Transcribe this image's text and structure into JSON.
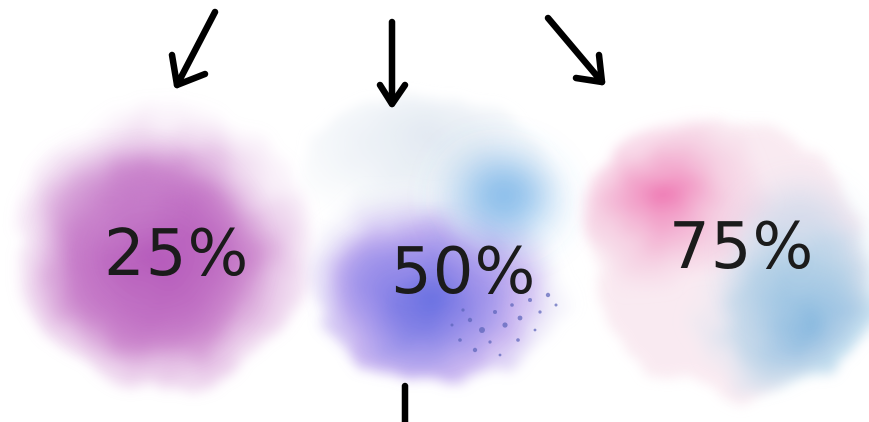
{
  "blots": [
    {
      "label": "25%",
      "colors": [
        "#b255b8",
        "#c97fc9",
        "#dfb3e0"
      ]
    },
    {
      "label": "50%",
      "colors": [
        "#5b6fe0",
        "#4a9ae0",
        "#a27ee6",
        "#dfe7f0"
      ]
    },
    {
      "label": "75%",
      "colors": [
        "#ee6fae",
        "#7fb3de",
        "#f3bfd9",
        "#d9eef6"
      ]
    }
  ],
  "arrow_color": "#000000"
}
